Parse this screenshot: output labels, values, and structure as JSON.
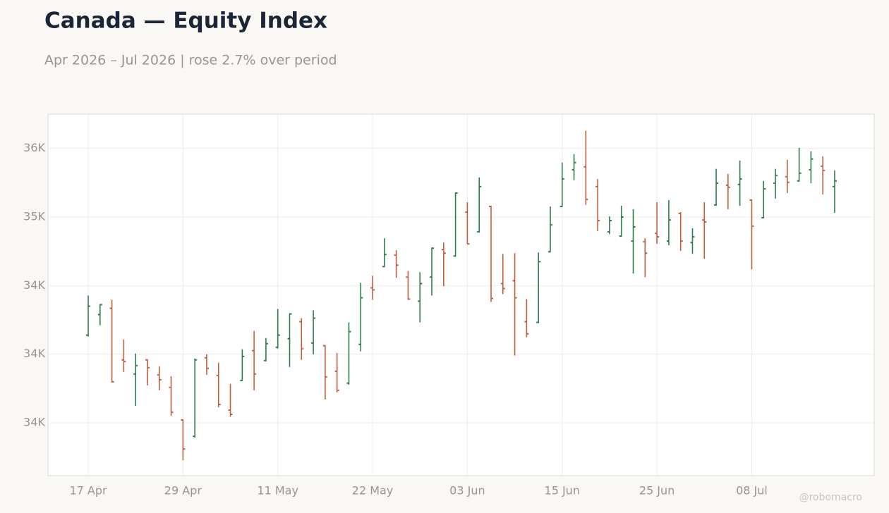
{
  "chart_data": {
    "type": "ohlc",
    "title": "Canada — Equity Index",
    "subtitle": "Apr 2026 – Jul 2026 | rose 2.7% over period",
    "watermark": "@robomacro",
    "categories": [
      "17 Apr",
      null,
      null,
      null,
      null,
      null,
      null,
      null,
      "29 Apr",
      null,
      null,
      null,
      null,
      null,
      null,
      null,
      "11 May",
      null,
      null,
      null,
      null,
      null,
      null,
      null,
      "22 May",
      null,
      null,
      null,
      null,
      null,
      null,
      null,
      "03 Jun",
      null,
      null,
      null,
      null,
      null,
      null,
      null,
      "15 Jun",
      null,
      null,
      null,
      null,
      null,
      null,
      null,
      "25 Jun",
      null,
      null,
      null,
      null,
      null,
      null,
      null,
      "08 Jul",
      null,
      null,
      null,
      null,
      null,
      null,
      null
    ],
    "open": [
      34139,
      34289,
      34335,
      33959,
      33856,
      33959,
      33850,
      33758,
      33521,
      33402,
      33974,
      33845,
      33593,
      33809,
      34026,
      33954,
      34051,
      34113,
      34237,
      34082,
      34062,
      33876,
      33789,
      34072,
      34484,
      34639,
      34722,
      34562,
      34387,
      34562,
      34763,
      34716,
      35036,
      34892,
      35077,
      34515,
      34536,
      34237,
      34232,
      34747,
      35077,
      35345,
      35366,
      35222,
      34892,
      34861,
      34825,
      34820,
      34881,
      34825,
      35026,
      34814,
      34979,
      35088,
      35232,
      35237,
      35124,
      34995,
      35247,
      35294,
      35263,
      35345,
      35371,
      35222
    ],
    "high": [
      34428,
      34366,
      34397,
      34108,
      34005,
      33964,
      33912,
      33840,
      33526,
      33969,
      34000,
      33938,
      33783,
      34036,
      34170,
      34118,
      34330,
      34299,
      34263,
      34320,
      34067,
      34010,
      34232,
      34521,
      34572,
      34845,
      34758,
      34608,
      34598,
      34778,
      34814,
      35180,
      35108,
      35289,
      35082,
      34732,
      34737,
      34402,
      34742,
      35077,
      35397,
      35459,
      35629,
      35278,
      35005,
      35082,
      35057,
      34845,
      35108,
      35124,
      35036,
      34918,
      35108,
      35351,
      35314,
      35412,
      35129,
      35263,
      35351,
      35418,
      35505,
      35479,
      35443,
      35340
    ],
    "low": [
      34129,
      34211,
      33794,
      33871,
      33624,
      33773,
      33737,
      33551,
      33227,
      33392,
      33850,
      33613,
      33546,
      33804,
      33737,
      33948,
      34041,
      33907,
      33959,
      34000,
      33670,
      33722,
      33778,
      34021,
      34397,
      34634,
      34557,
      34397,
      34232,
      34428,
      34495,
      34711,
      34804,
      34887,
      34381,
      34438,
      33990,
      34124,
      34227,
      34742,
      35072,
      35268,
      35088,
      34897,
      34876,
      34856,
      34588,
      34562,
      34804,
      34794,
      34753,
      34732,
      34696,
      35082,
      35057,
      35082,
      34619,
      34990,
      35134,
      35175,
      35258,
      35247,
      35165,
      35031
    ],
    "close": [
      34350,
      34361,
      33799,
      33948,
      33917,
      33902,
      33814,
      33577,
      33309,
      33959,
      33897,
      33634,
      33562,
      33984,
      33856,
      34077,
      34139,
      34294,
      34041,
      34263,
      33835,
      33737,
      34165,
      34412,
      34469,
      34727,
      34649,
      34402,
      34515,
      34773,
      34737,
      35175,
      34804,
      35222,
      34407,
      34479,
      34412,
      34149,
      34675,
      34943,
      35278,
      35397,
      35129,
      34974,
      34974,
      35000,
      34928,
      34737,
      34856,
      34979,
      34825,
      34856,
      34964,
      35247,
      35217,
      35278,
      34933,
      35206,
      35304,
      35253,
      35320,
      35423,
      35340,
      35263
    ],
    "up_color": "#2e7d4f",
    "down_color": "#c0603e",
    "ylim": [
      33115,
      35750
    ],
    "yticks": [
      {
        "value": 33500,
        "label": "34K"
      },
      {
        "value": 34000,
        "label": "34K"
      },
      {
        "value": 34500,
        "label": "34K"
      },
      {
        "value": 35000,
        "label": "35K"
      },
      {
        "value": 35500,
        "label": "36K"
      }
    ],
    "grid": true
  }
}
